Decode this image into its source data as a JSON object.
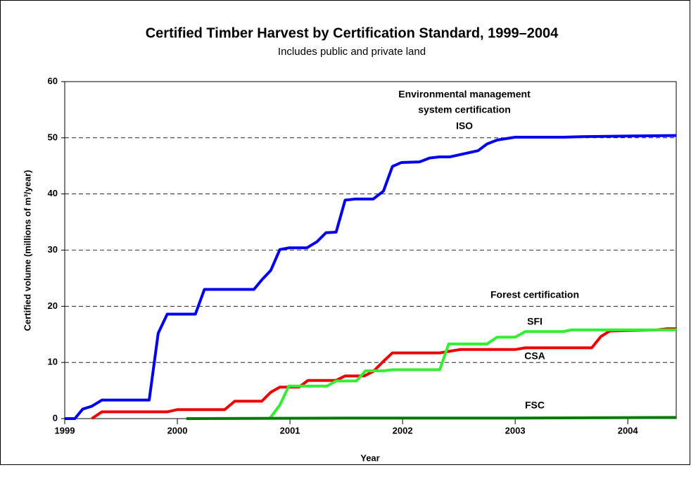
{
  "chart_data": {
    "type": "line",
    "title": "Certified Timber Harvest by Certification Standard, 1999–2004",
    "subtitle": "Includes public and private land",
    "x_label": "Year",
    "y_label": "Certified volume (millions of m³/year)",
    "xlim": [
      1999,
      2004.43
    ],
    "xticks": [
      1999,
      2000,
      2001,
      2002,
      2003,
      2004
    ],
    "ylim": [
      0,
      60
    ],
    "yticks": [
      0,
      10,
      20,
      30,
      40,
      50,
      60
    ],
    "grid": true,
    "annotations": [
      "Environmental management",
      "system certification",
      "ISO",
      "Forest certification",
      "SFI",
      "CSA",
      "FSC"
    ],
    "series": [
      {
        "name": "ISO",
        "color": "#0000ee",
        "x": [
          1999,
          1999.09,
          1999.16,
          1999.24,
          1999.33,
          1999.75,
          1999.83,
          1999.91,
          2000.16,
          2000.24,
          2000.68,
          2000.75,
          2000.83,
          2000.91,
          2000.99,
          2001.15,
          2001.24,
          2001.32,
          2001.41,
          2001.49,
          2001.58,
          2001.74,
          2001.83,
          2001.91,
          2001.99,
          2002.15,
          2002.24,
          2002.33,
          2002.42,
          2002.51,
          2002.67,
          2002.75,
          2002.84,
          2003.0,
          2003.43,
          2003.59,
          2003.93,
          2004.43
        ],
        "values": [
          0,
          0,
          1.7,
          2.2,
          3.3,
          3.3,
          15.2,
          18.6,
          18.6,
          23,
          23,
          24.7,
          26.4,
          30.1,
          30.4,
          30.4,
          31.5,
          33.1,
          33.2,
          38.9,
          39.1,
          39.1,
          40.5,
          44.9,
          45.6,
          45.7,
          46.4,
          46.6,
          46.6,
          47,
          47.7,
          48.9,
          49.6,
          50.1,
          50.1,
          50.2,
          50.3,
          50.4
        ]
      },
      {
        "name": "CSA",
        "color": "#ee0000",
        "x": [
          1999.24,
          1999.33,
          1999.91,
          2000,
          2000.42,
          2000.51,
          2000.75,
          2000.83,
          2000.91,
          2001.08,
          2001.16,
          2001.41,
          2001.49,
          2001.66,
          2001.74,
          2001.83,
          2001.91,
          2002.33,
          2002.51,
          2003.0,
          2003.09,
          2003.68,
          2003.76,
          2003.84,
          2004.26,
          2004.35,
          2004.43
        ],
        "values": [
          0,
          1.2,
          1.2,
          1.6,
          1.6,
          3.1,
          3.1,
          4.7,
          5.6,
          5.6,
          6.8,
          6.8,
          7.6,
          7.6,
          8.4,
          10.2,
          11.7,
          11.7,
          12.3,
          12.3,
          12.6,
          12.6,
          14.6,
          15.6,
          15.8,
          16,
          16
        ]
      },
      {
        "name": "SFI",
        "color": "#33ee33",
        "x": [
          2000.82,
          2000.91,
          2000.99,
          2001.33,
          2001.41,
          2001.59,
          2001.67,
          2001.83,
          2001.91,
          2002.33,
          2002.41,
          2002.75,
          2002.84,
          2003.0,
          2003.09,
          2003.43,
          2003.5,
          2004.43
        ],
        "values": [
          0,
          2.4,
          5.8,
          5.8,
          6.7,
          6.7,
          8.5,
          8.5,
          8.7,
          8.7,
          13.3,
          13.3,
          14.5,
          14.5,
          15.5,
          15.5,
          15.8,
          15.8
        ]
      },
      {
        "name": "FSC",
        "color": "#007a00",
        "x": [
          2000.08,
          2001.5,
          2003.0,
          2004.43
        ],
        "values": [
          0,
          0.1,
          0.1,
          0.2
        ]
      }
    ]
  }
}
